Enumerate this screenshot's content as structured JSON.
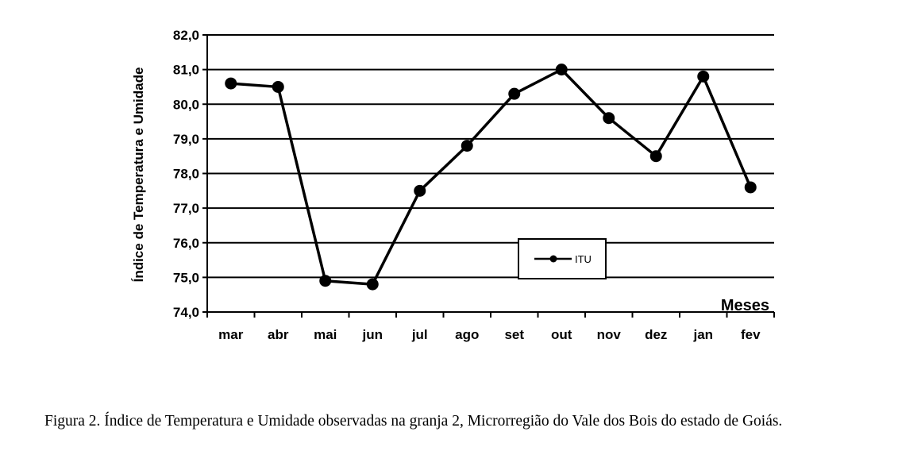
{
  "caption": "Figura 2. Índice de Temperatura e Umidade observadas na granja 2, Microrregião do Vale dos Bois do estado de Goiás.",
  "chart_data": {
    "type": "line",
    "title": "",
    "xlabel": "Meses",
    "ylabel": "Índice de Temperatura e Umidade",
    "categories": [
      "mar",
      "abr",
      "mai",
      "jun",
      "jul",
      "ago",
      "set",
      "out",
      "nov",
      "dez",
      "jan",
      "fev"
    ],
    "series": [
      {
        "name": "ITU",
        "values": [
          80.6,
          80.5,
          74.9,
          74.8,
          77.5,
          78.8,
          80.3,
          81.0,
          79.6,
          78.5,
          80.8,
          77.6
        ]
      }
    ],
    "ylim": [
      74.0,
      82.0
    ],
    "yticks": [
      "74,0",
      "75,0",
      "76,0",
      "77,0",
      "78,0",
      "79,0",
      "80,0",
      "81,0",
      "82,0"
    ],
    "grid": "horizontal",
    "legend": "inside-bottom-center",
    "line_color": "#000000"
  }
}
